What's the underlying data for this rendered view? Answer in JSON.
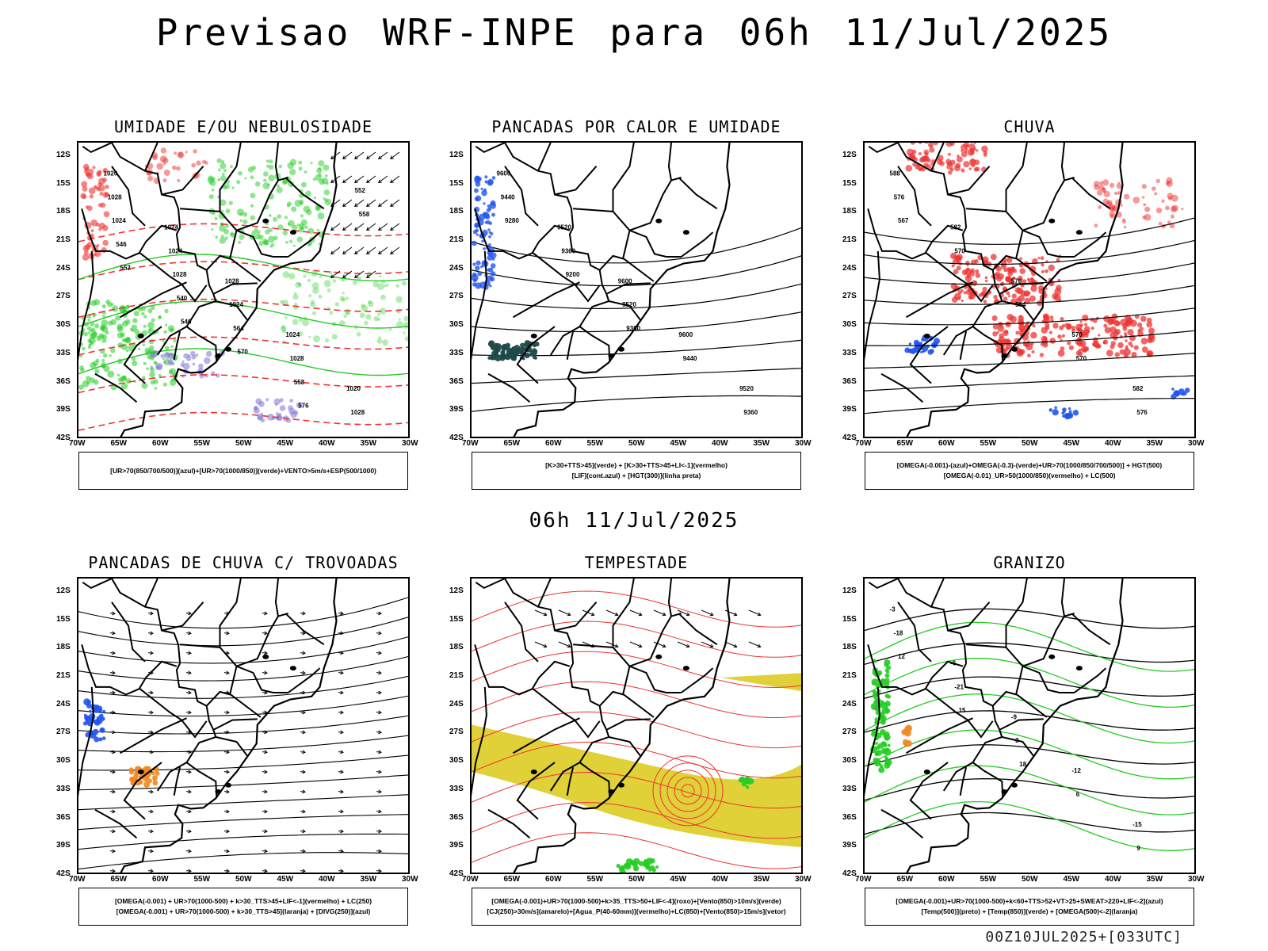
{
  "header": {
    "title": "Previsao WRF-INPE  para 06h 11/Jul/2025",
    "mid_time": "06h 11/Jul/2025",
    "run_info": "00Z10JUL2025+[033UTC]"
  },
  "axes": {
    "lat_ticks": [
      "12S",
      "15S",
      "18S",
      "21S",
      "24S",
      "27S",
      "30S",
      "33S",
      "36S",
      "39S",
      "42S"
    ],
    "lon_ticks": [
      "70W",
      "65W",
      "60W",
      "55W",
      "50W",
      "45W",
      "40W",
      "35W",
      "30W"
    ]
  },
  "colors": {
    "green": "#22cc22",
    "red": "#ee3333",
    "blue": "#2255ee",
    "orange": "#ee8822",
    "yellow": "#ddcc22",
    "darkteal": "#1f4a4a",
    "purple": "#8a7fd8",
    "black": "#000000"
  },
  "chart_data": [
    {
      "type": "map",
      "id": "umidade",
      "title": "UMIDADE E/OU NEBULOSIDADE",
      "legend_lines": [
        "[UR>70(850/700/500)](azul)+[UR>70(1000/850)](verde)+VENTO>5m/s+ESP(500/1000)"
      ],
      "contour_labels": [
        "1020",
        "1024",
        "1028",
        "1024",
        "1020",
        "1028",
        "1024",
        "1024",
        "1028",
        "1028",
        "1024",
        "1028",
        "564",
        "558",
        "552",
        "546",
        "540",
        "570",
        "576",
        "558",
        "552",
        "546"
      ]
    },
    {
      "type": "map",
      "id": "pancadas_calor",
      "title": "PANCADAS POR CALOR E UMIDADE",
      "legend_lines": [
        "[K>30+TTS>45](verde) + [K>30+TTS>45+LI<-1](vermelho)",
        "[LIF](cont.azul) + [HGT(300)](linha preta)"
      ],
      "contour_labels": [
        "9600",
        "9520",
        "9600",
        "9600",
        "9520",
        "9440",
        "9360",
        "9520",
        "9440",
        "9360",
        "9280",
        "9200",
        "9360"
      ]
    },
    {
      "type": "map",
      "id": "chuva",
      "title": "CHUVA",
      "legend_lines": [
        "[OMEGA(-0.001)-(azul)+OMEGA(-0.3)-(verde)+UR>70(1000/850/700/500)] + HGT(500)",
        "[OMEGA(-0.01)_UR>50(1000/850)(vermelho) + LC(500)"
      ],
      "contour_labels": [
        "588",
        "582",
        "576",
        "570",
        "582",
        "576",
        "570",
        "564",
        "570",
        "576",
        "567"
      ]
    },
    {
      "type": "map",
      "id": "trovoadas",
      "title": "PANCADAS DE CHUVA C/ TROVOADAS",
      "legend_lines": [
        "[OMEGA(-0.001) + UR>70(1000-500) + k>30_TTS>45+LIF<-1](vermelho) + LC(250)",
        "[OMEGA(-0.001) + UR>70(1000-500) + k>30_TTS>45](laranja) + [DIVG(250)](azul)"
      ],
      "contour_labels": []
    },
    {
      "type": "map",
      "id": "tempestade",
      "title": "TEMPESTADE",
      "legend_lines": [
        "[OMEGA(-0.001)+UR>70(1000-500)+k>35_TTS>50+LIF<-4](roxo)+[Vento(850)>10m/s](verde)",
        "[CJ(250)>30m/s](amarelo)+[Agua_P(40-60mm)](vermelho)+LC(850)+[Vento(850)>15m/s](vetor)"
      ],
      "contour_labels": []
    },
    {
      "type": "map",
      "id": "granizo",
      "title": "GRANIZO",
      "legend_lines": [
        "[OMEGA(-0.001)+UR>70(1000-500)+k<60+TTS>52+VT>25+SWEAT>220+LIF<-2](azul)",
        "[Temp(500)](preto) + [Temp(850)](verde) + [OMEGA(500)<-2](laranja)"
      ],
      "contour_labels": [
        "-3",
        "-6",
        "-9",
        "-12",
        "-15",
        "-18",
        "-21",
        "3",
        "6",
        "9",
        "12",
        "15",
        "18"
      ]
    }
  ]
}
